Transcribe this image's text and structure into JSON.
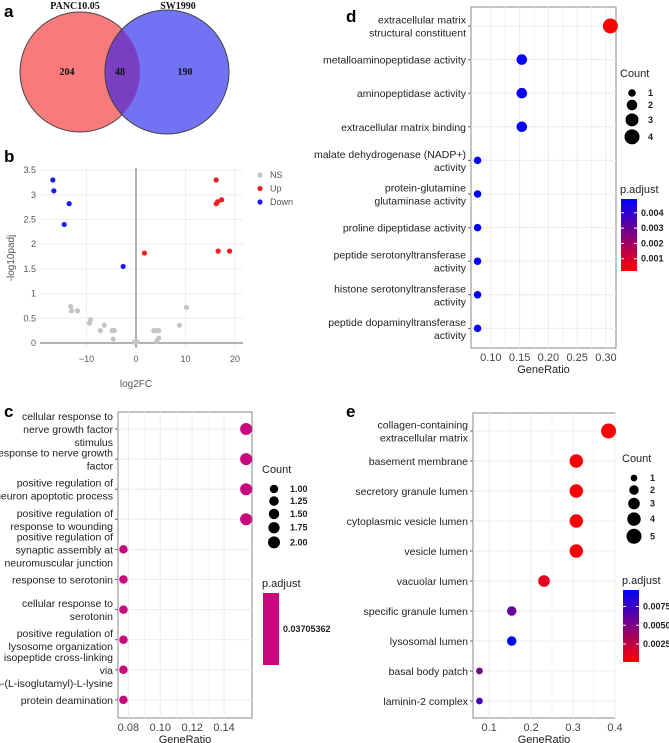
{
  "panels": {
    "a": "a",
    "b": "b",
    "c": "c",
    "d": "d",
    "e": "e"
  },
  "chart_data": [
    {
      "id": "a",
      "type": "venn",
      "sets": [
        {
          "name": "PANC10.05",
          "only": 204,
          "color": "#f87a7a"
        },
        {
          "name": "SW1990",
          "only": 190,
          "color": "#7272f5"
        }
      ],
      "intersection": 48,
      "intersection_color": "#7a3fc0"
    },
    {
      "id": "b",
      "type": "scatter",
      "xlabel": "log2FC",
      "ylabel": "-log10padj",
      "xlim": [
        -19,
        21.5
      ],
      "ylim": [
        -0.1,
        3.5
      ],
      "xticks": [
        -10,
        0,
        10,
        20
      ],
      "yticks": [
        0,
        0.5,
        1,
        1.5,
        2,
        2.5,
        3,
        3.5
      ],
      "grid": true,
      "legend_position": "right",
      "series": [
        {
          "name": "NS",
          "color": "#c4c4c4",
          "points": [
            [
              -13.2,
              0.74
            ],
            [
              -13,
              0.65
            ],
            [
              -11.8,
              0.65
            ],
            [
              -9.2,
              0.47
            ],
            [
              -9.4,
              0.4
            ],
            [
              -7.2,
              0.25
            ],
            [
              -6.4,
              0.36
            ],
            [
              -4.8,
              0.25
            ],
            [
              -4.4,
              0.25
            ],
            [
              -4.6,
              0.08
            ],
            [
              -0.3,
              0.02
            ],
            [
              0.2,
              0.02
            ],
            [
              3.6,
              0.25
            ],
            [
              4.2,
              0.25
            ],
            [
              4.6,
              0.25
            ],
            [
              4.2,
              0.04
            ],
            [
              4.6,
              0.1
            ],
            [
              8.8,
              0.36
            ],
            [
              10.2,
              0.72
            ]
          ]
        },
        {
          "name": "Up",
          "color": "#f02020",
          "points": [
            [
              16.2,
              3.3
            ],
            [
              16.2,
              2.82
            ],
            [
              16.5,
              2.86
            ],
            [
              17.3,
              2.9
            ],
            [
              16.6,
              1.86
            ],
            [
              18.9,
              1.86
            ],
            [
              1.7,
              1.82
            ]
          ]
        },
        {
          "name": "Down",
          "color": "#1a1aee",
          "points": [
            [
              -16.8,
              3.3
            ],
            [
              -16.6,
              3.08
            ],
            [
              -13.5,
              2.82
            ],
            [
              -14.5,
              2.4
            ],
            [
              -2.6,
              1.55
            ]
          ]
        }
      ]
    },
    {
      "id": "c",
      "type": "scatter",
      "subtype": "dotplot",
      "xlabel": "GeneRatio",
      "xlim": [
        0.0735,
        0.1575
      ],
      "xticks": [
        0.08,
        0.1,
        0.12,
        0.14
      ],
      "tick_labels": [
        "0.08",
        "0.10",
        "0.12",
        "0.14"
      ],
      "count_legend": {
        "title": "Count",
        "values": [
          1.0,
          1.25,
          1.5,
          1.75,
          2.0
        ],
        "labels": [
          "1.00",
          "1.25",
          "1.50",
          "1.75",
          "2.00"
        ]
      },
      "color_legend": {
        "title": "p.adjust",
        "labels": [
          "0.03705362"
        ],
        "range": [
          0.03705362,
          0.03705362
        ],
        "single_color": "#c8087e"
      },
      "terms": [
        {
          "label": "cellular response to\nnerve growth factor\nstimulus",
          "gene_ratio": 0.1538,
          "count": 2,
          "p_adjust": 0.03705362
        },
        {
          "label": "response to nerve growth\nfactor",
          "gene_ratio": 0.1538,
          "count": 2,
          "p_adjust": 0.03705362
        },
        {
          "label": "positive regulation of\nneuron apoptotic process",
          "gene_ratio": 0.1538,
          "count": 2,
          "p_adjust": 0.03705362
        },
        {
          "label": "positive regulation of\nresponse to wounding",
          "gene_ratio": 0.1538,
          "count": 2,
          "p_adjust": 0.03705362
        },
        {
          "label": "positive regulation of\nsynaptic assembly at\nneuromuscular junction",
          "gene_ratio": 0.0769,
          "count": 1,
          "p_adjust": 0.03705362
        },
        {
          "label": "response to serotonin",
          "gene_ratio": 0.0769,
          "count": 1,
          "p_adjust": 0.03705362
        },
        {
          "label": "cellular response to\nserotonin",
          "gene_ratio": 0.0769,
          "count": 1,
          "p_adjust": 0.03705362
        },
        {
          "label": "positive regulation of\nlysosome organization",
          "gene_ratio": 0.0769,
          "count": 1,
          "p_adjust": 0.03705362
        },
        {
          "label": "isopeptide cross-linking\nvia\nN6-(L-isoglutamyl)-L-lysine",
          "gene_ratio": 0.0769,
          "count": 1,
          "p_adjust": 0.03705362
        },
        {
          "label": "protein deamination",
          "gene_ratio": 0.0769,
          "count": 1,
          "p_adjust": 0.03705362
        }
      ]
    },
    {
      "id": "d",
      "type": "scatter",
      "subtype": "dotplot",
      "xlabel": "GeneRatio",
      "xlim": [
        0.0655,
        0.3175
      ],
      "xticks": [
        0.1,
        0.15,
        0.2,
        0.25,
        0.3
      ],
      "tick_labels": [
        "0.10",
        "0.15",
        "0.20",
        "0.25",
        "0.30"
      ],
      "count_legend": {
        "title": "Count",
        "values": [
          1,
          2,
          3,
          4
        ],
        "labels": [
          "1",
          "2",
          "3",
          "4"
        ]
      },
      "color_legend": {
        "title": "p.adjust",
        "labels": [
          "0.004",
          "0.003",
          "0.002",
          "0.001"
        ],
        "values": [
          0.004,
          0.003,
          0.002,
          0.001
        ],
        "range": [
          0.0002,
          0.0049
        ]
      },
      "terms": [
        {
          "label": "extracellular matrix\nstructural constituent",
          "gene_ratio": 0.3077,
          "count": 4,
          "p_adjust": 0.0002
        },
        {
          "label": "metalloaminopeptidase activity",
          "gene_ratio": 0.1538,
          "count": 2,
          "p_adjust": 0.0048
        },
        {
          "label": "aminopeptidase activity",
          "gene_ratio": 0.1538,
          "count": 2,
          "p_adjust": 0.0048
        },
        {
          "label": "extracellular matrix binding",
          "gene_ratio": 0.1538,
          "count": 2,
          "p_adjust": 0.0048
        },
        {
          "label": "malate dehydrogenase (NADP+)\nactivity",
          "gene_ratio": 0.0769,
          "count": 1,
          "p_adjust": 0.0049
        },
        {
          "label": "protein-glutamine\nglutaminase activity",
          "gene_ratio": 0.0769,
          "count": 1,
          "p_adjust": 0.0049
        },
        {
          "label": "proline dipeptidase activity",
          "gene_ratio": 0.0769,
          "count": 1,
          "p_adjust": 0.0049
        },
        {
          "label": "peptide serotonyltransferase\nactivity",
          "gene_ratio": 0.0769,
          "count": 1,
          "p_adjust": 0.0049
        },
        {
          "label": "histone serotonyltransferase\nactivity",
          "gene_ratio": 0.0769,
          "count": 1,
          "p_adjust": 0.0049
        },
        {
          "label": "peptide dopaminyltransferase\nactivity",
          "gene_ratio": 0.0769,
          "count": 1,
          "p_adjust": 0.0049
        }
      ]
    },
    {
      "id": "e",
      "type": "scatter",
      "subtype": "dotplot",
      "xlabel": "GeneRatio",
      "xlim": [
        0.0615,
        0.4
      ],
      "xticks": [
        0.1,
        0.2,
        0.3,
        0.4
      ],
      "tick_labels": [
        "0.1",
        "0.2",
        "0.3",
        "0.4"
      ],
      "count_legend": {
        "title": "Count",
        "values": [
          1,
          2,
          3,
          4,
          5
        ],
        "labels": [
          "1",
          "2",
          "3",
          "4",
          "5"
        ]
      },
      "color_legend": {
        "title": "p.adjust",
        "labels": [
          "0.0075",
          "0.0050",
          "0.0025"
        ],
        "values": [
          0.0075,
          0.005,
          0.0025
        ],
        "range": [
          0.0001,
          0.0097
        ]
      },
      "terms": [
        {
          "label": "collagen-containing\nextracellular matrix",
          "gene_ratio": 0.3846,
          "count": 5,
          "p_adjust": 0.0002
        },
        {
          "label": "basement membrane",
          "gene_ratio": 0.3077,
          "count": 4,
          "p_adjust": 0.0003
        },
        {
          "label": "secretory granule lumen",
          "gene_ratio": 0.3077,
          "count": 4,
          "p_adjust": 0.0003
        },
        {
          "label": "cytoplasmic vesicle lumen",
          "gene_ratio": 0.3077,
          "count": 4,
          "p_adjust": 0.0003
        },
        {
          "label": "vesicle lumen",
          "gene_ratio": 0.3077,
          "count": 4,
          "p_adjust": 0.0003
        },
        {
          "label": "vacuolar lumen",
          "gene_ratio": 0.2308,
          "count": 3,
          "p_adjust": 0.0012
        },
        {
          "label": "specific granule lumen",
          "gene_ratio": 0.1538,
          "count": 2,
          "p_adjust": 0.0058
        },
        {
          "label": "lysosomal lumen",
          "gene_ratio": 0.1538,
          "count": 2,
          "p_adjust": 0.0097
        },
        {
          "label": "basal body patch",
          "gene_ratio": 0.0769,
          "count": 1,
          "p_adjust": 0.0055
        },
        {
          "label": "laminin-2 complex",
          "gene_ratio": 0.0769,
          "count": 1,
          "p_adjust": 0.0072
        }
      ]
    }
  ]
}
